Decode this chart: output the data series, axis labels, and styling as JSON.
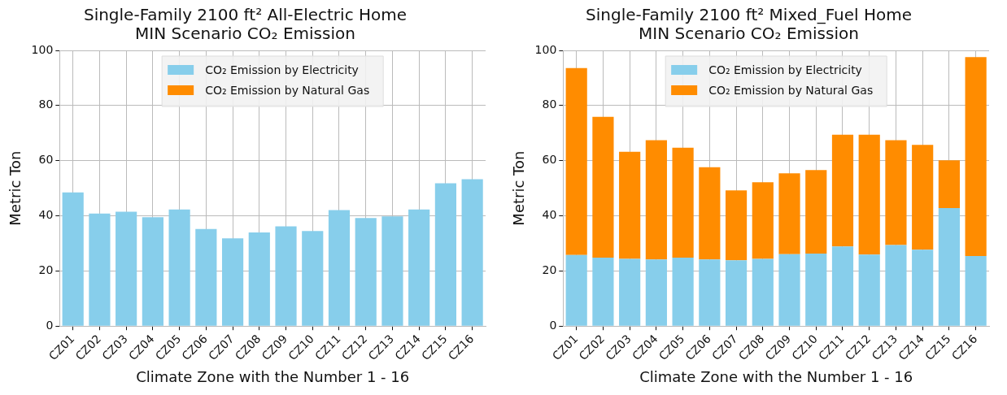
{
  "chart_data": [
    {
      "type": "bar",
      "stacked": true,
      "title": "Single-Family 2100 ft² All-Electric Home\nMIN Scenario CO₂ Emission",
      "xlabel": "Climate Zone with the Number 1 - 16",
      "ylabel": "Metric Ton",
      "categories": [
        "CZ01",
        "CZ02",
        "CZ03",
        "CZ04",
        "CZ05",
        "CZ06",
        "CZ07",
        "CZ08",
        "CZ09",
        "CZ10",
        "CZ11",
        "CZ12",
        "CZ13",
        "CZ14",
        "CZ15",
        "CZ16"
      ],
      "series": [
        {
          "name": "CO₂ Emission by Electricity",
          "color": "#87ceeb",
          "values": [
            48.5,
            40.8,
            41.5,
            39.5,
            42.3,
            35.2,
            31.8,
            34.0,
            36.2,
            34.5,
            42.1,
            39.2,
            39.8,
            42.3,
            51.8,
            53.3
          ]
        },
        {
          "name": "CO₂ Emission by Natural Gas",
          "color": "#ff8c00",
          "values": [
            0,
            0,
            0,
            0,
            0,
            0,
            0,
            0,
            0,
            0,
            0,
            0,
            0,
            0,
            0,
            0
          ]
        }
      ],
      "ylim": [
        0,
        100
      ],
      "yticks": [
        0,
        20,
        40,
        60,
        80,
        100
      ],
      "grid": true,
      "legend": "top"
    },
    {
      "type": "bar",
      "stacked": true,
      "title": "Single-Family 2100 ft² Mixed_Fuel Home\nMIN Scenario CO₂ Emission",
      "xlabel": "Climate Zone with the Number 1 - 16",
      "ylabel": "Metric Ton",
      "categories": [
        "CZ01",
        "CZ02",
        "CZ03",
        "CZ04",
        "CZ05",
        "CZ06",
        "CZ07",
        "CZ08",
        "CZ09",
        "CZ10",
        "CZ11",
        "CZ12",
        "CZ13",
        "CZ14",
        "CZ15",
        "CZ16"
      ],
      "series": [
        {
          "name": "CO₂ Emission by Electricity",
          "color": "#87ceeb",
          "values": [
            25.8,
            24.8,
            24.4,
            24.2,
            24.8,
            24.2,
            23.9,
            24.4,
            26.1,
            26.3,
            28.9,
            25.9,
            29.4,
            27.7,
            42.8,
            25.4
          ]
        },
        {
          "name": "CO₂ Emission by Natural Gas",
          "color": "#ff8c00",
          "values": [
            67.8,
            51.1,
            38.8,
            43.2,
            39.9,
            33.4,
            25.3,
            27.8,
            29.3,
            30.3,
            40.5,
            43.5,
            38.0,
            38.0,
            17.3,
            72.2
          ]
        }
      ],
      "ylim": [
        0,
        100
      ],
      "yticks": [
        0,
        20,
        40,
        60,
        80,
        100
      ],
      "grid": true,
      "legend": "top"
    }
  ]
}
